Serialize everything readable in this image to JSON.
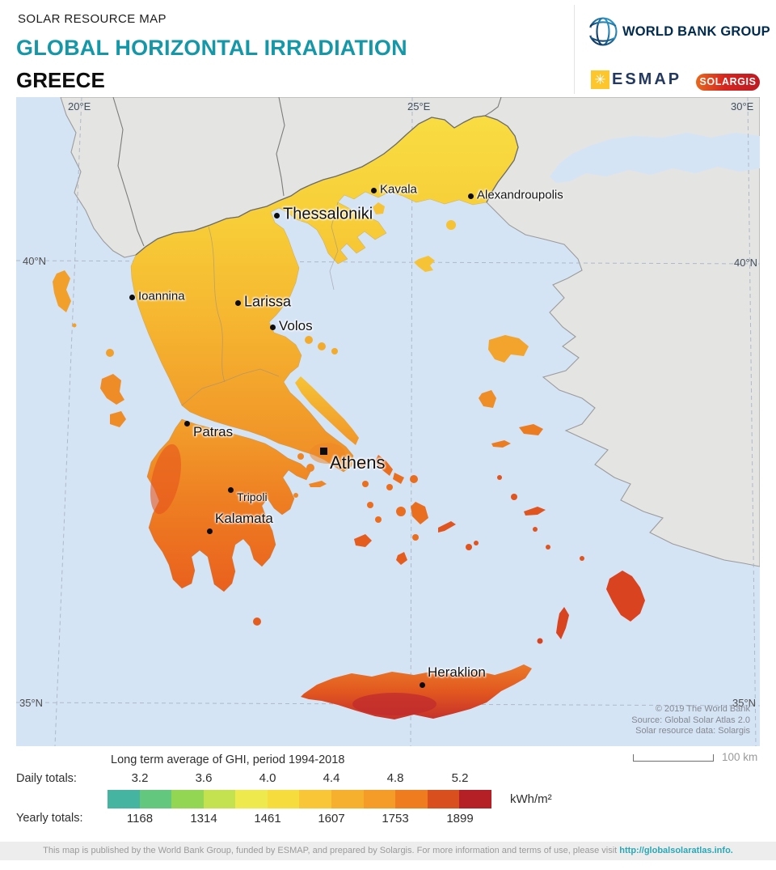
{
  "header": {
    "kicker": "SOLAR RESOURCE MAP",
    "title": "GLOBAL HORIZONTAL IRRADIATION",
    "title_color": "#1697a8",
    "country": "GREECE",
    "logos": {
      "world_bank": "WORLD BANK GROUP",
      "esmap": "ESMAP",
      "solargis": "SOLARGIS"
    }
  },
  "map": {
    "colors": {
      "sea": "#d5e4f5",
      "neutral_land": "#e4e4e2",
      "country_border": "#6b6b6b"
    },
    "graticule": {
      "meridians": [
        "20°E",
        "25°E",
        "30°E"
      ],
      "parallels": [
        "40°N",
        "35°N"
      ]
    },
    "cities": [
      {
        "name": "Thessaloniki"
      },
      {
        "name": "Kavala"
      },
      {
        "name": "Alexandroupolis"
      },
      {
        "name": "Ioannina"
      },
      {
        "name": "Larissa"
      },
      {
        "name": "Volos"
      },
      {
        "name": "Patras"
      },
      {
        "name": "Athens"
      },
      {
        "name": "Tripoli"
      },
      {
        "name": "Kalamata"
      },
      {
        "name": "Heraklion"
      }
    ],
    "attribution": {
      "line1": "© 2019 The World Bank",
      "line2": "Source: Global Solar Atlas 2.0",
      "line3": "Solar resource data: Solargis"
    },
    "scale_label": "100 km"
  },
  "legend": {
    "title": "Long term average of GHI, period 1994-2018",
    "daily_label": "Daily totals:",
    "yearly_label": "Yearly totals:",
    "daily_values": [
      "3.2",
      "3.6",
      "4.0",
      "4.4",
      "4.8",
      "5.2"
    ],
    "yearly_values": [
      "1168",
      "1314",
      "1461",
      "1607",
      "1753",
      "1899"
    ],
    "unit": "kWh/m²",
    "colors": [
      "#45b5a2",
      "#63c87d",
      "#93d653",
      "#c4e24f",
      "#eeea4e",
      "#f7dc3e",
      "#f9c637",
      "#f7b02e",
      "#f49b28",
      "#ef7c1e",
      "#d94f1e",
      "#b42025"
    ]
  },
  "footer": {
    "text": "This map is published by the World Bank Group, funded by ESMAP, and prepared by Solargis. For more information and terms of use, please visit ",
    "link": "http://globalsolaratlas.info."
  }
}
